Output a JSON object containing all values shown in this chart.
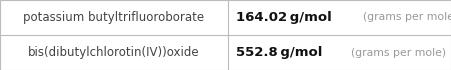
{
  "rows": [
    {
      "name": "potassium butyltrifluoroborate",
      "value": "164.02 g/mol",
      "unit_long": "(grams per mole)"
    },
    {
      "name": "bis(dibutylchlorotin(IV))oxide",
      "value": "552.8 g/mol",
      "unit_long": "(grams per mole)"
    }
  ],
  "col_split": 0.505,
  "bg_color": "#ffffff",
  "border_color": "#bbbbbb",
  "text_color_name": "#444444",
  "text_color_value": "#111111",
  "text_color_unit": "#999999",
  "name_fontsize": 8.5,
  "value_fontsize": 9.5,
  "unit_long_fontsize": 7.8
}
